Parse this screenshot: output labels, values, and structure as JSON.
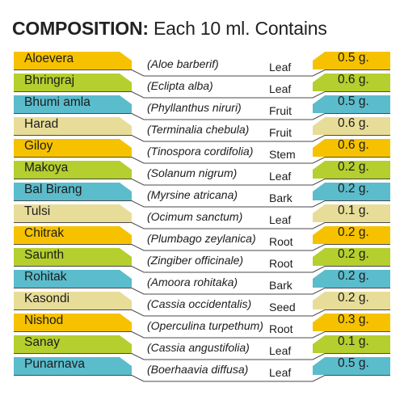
{
  "title": {
    "lead": "COMPOSITION:",
    "rest": "Each 10 ml. Contains"
  },
  "colors": [
    "#f6c200",
    "#b4cf2e",
    "#5bbccc",
    "#e7dd98"
  ],
  "items": [
    {
      "name": "Aloevera",
      "latin": "(Aloe barberif)",
      "part": "Leaf",
      "qty": "0.5 g."
    },
    {
      "name": "Bhringraj",
      "latin": "(Eclipta alba)",
      "part": "Leaf",
      "qty": "0.6 g."
    },
    {
      "name": "Bhumi amla",
      "latin": "(Phyllanthus niruri)",
      "part": "Fruit",
      "qty": "0.5 g."
    },
    {
      "name": "Harad",
      "latin": "(Terminalia chebula)",
      "part": "Fruit",
      "qty": "0.6 g."
    },
    {
      "name": "Giloy",
      "latin": "(Tinospora cordifolia)",
      "part": "Stem",
      "qty": "0.6 g."
    },
    {
      "name": "Makoya",
      "latin": "(Solanum nigrum)",
      "part": "Leaf",
      "qty": "0.2 g."
    },
    {
      "name": "Bal Birang",
      "latin": "(Myrsine atricana)",
      "part": "Bark",
      "qty": "0.2 g."
    },
    {
      "name": "Tulsi",
      "latin": "(Ocimum sanctum)",
      "part": "Leaf",
      "qty": "0.1 g."
    },
    {
      "name": "Chitrak",
      "latin": "(Plumbago zeylanica)",
      "part": "Root",
      "qty": "0.2 g."
    },
    {
      "name": "Saunth",
      "latin": "(Zingiber officinale)",
      "part": "Root",
      "qty": "0.2 g."
    },
    {
      "name": "Rohitak",
      "latin": "(Amoora rohitaka)",
      "part": "Bark",
      "qty": "0.2 g."
    },
    {
      "name": "Kasondi",
      "latin": "(Cassia occidentalis)",
      "part": "Seed",
      "qty": "0.2 g."
    },
    {
      "name": "Nishod",
      "latin": "(Operculina turpethum)",
      "part": "Root",
      "qty": "0.3 g."
    },
    {
      "name": "Sanay",
      "latin": "(Cassia angustifolia)",
      "part": "Leaf",
      "qty": "0.1 g."
    },
    {
      "name": "Punarnava",
      "latin": "(Boerhaavia diffusa)",
      "part": "Leaf",
      "qty": "0.5 g."
    }
  ]
}
